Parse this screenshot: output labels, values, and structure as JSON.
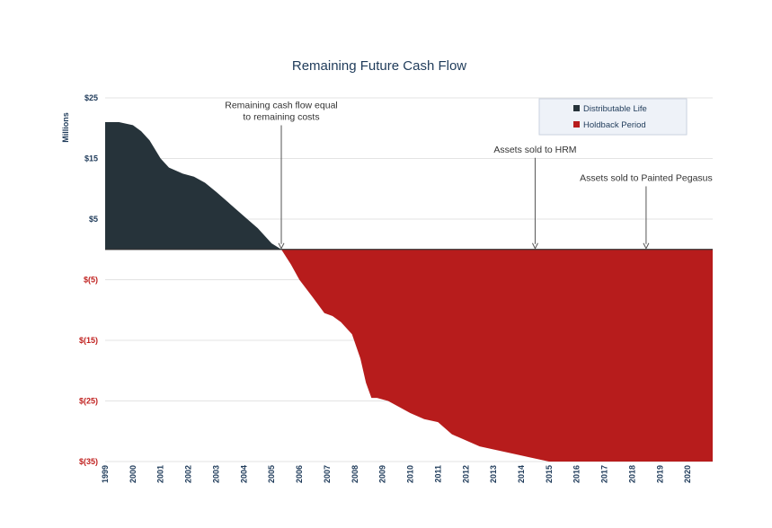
{
  "chart_data": {
    "type": "area",
    "title": "Remaining Future Cash Flow",
    "ylabel": "Millions",
    "xlabel": "",
    "ylim": [
      -35,
      25
    ],
    "xlim": [
      1999,
      2020.9
    ],
    "y_ticks": [
      {
        "value": 25,
        "label": "$25",
        "color": "#1f3b5a"
      },
      {
        "value": 15,
        "label": "$15",
        "color": "#1f3b5a"
      },
      {
        "value": 5,
        "label": "$5",
        "color": "#1f3b5a"
      },
      {
        "value": -5,
        "label": "$(5)",
        "color": "#c0211f"
      },
      {
        "value": -15,
        "label": "$(15)",
        "color": "#c0211f"
      },
      {
        "value": -25,
        "label": "$(25)",
        "color": "#c0211f"
      },
      {
        "value": -35,
        "label": "$(35)",
        "color": "#c0211f"
      }
    ],
    "x_ticks": [
      "1999",
      "2000",
      "2001",
      "2002",
      "2003",
      "2004",
      "2005",
      "2006",
      "2007",
      "2008",
      "2009",
      "2010",
      "2011",
      "2012",
      "2013",
      "2014",
      "2015",
      "2016",
      "2017",
      "2018",
      "2019",
      "2020"
    ],
    "grid": true,
    "legend_position": "top-right",
    "series": [
      {
        "name": "Distributable Life",
        "color": "#26333a",
        "x": [
          1999,
          1999.5,
          2000,
          2000.3,
          2000.6,
          2001,
          2001.3,
          2001.8,
          2002.2,
          2002.6,
          2003,
          2003.5,
          2004,
          2004.5,
          2005,
          2005.35
        ],
        "y": [
          21,
          21,
          20.5,
          19.5,
          18,
          15,
          13.5,
          12.5,
          12,
          11,
          9.5,
          7.5,
          5.5,
          3.5,
          1,
          0
        ]
      },
      {
        "name": "Holdback Period",
        "color": "#b71c1c",
        "x": [
          2005.35,
          2005.7,
          2006,
          2006.5,
          2006.9,
          2007.2,
          2007.5,
          2007.9,
          2008.2,
          2008.4,
          2008.6,
          2008.8,
          2009.2,
          2009.6,
          2010,
          2010.5,
          2011,
          2011.5,
          2012,
          2012.5,
          2013,
          2013.5,
          2014,
          2014.5,
          2015,
          2016,
          2017,
          2018,
          2019,
          2020,
          2020.9
        ],
        "y": [
          0,
          -2.5,
          -5,
          -8,
          -10.5,
          -11,
          -12,
          -14,
          -18,
          -22,
          -24.5,
          -24.5,
          -25,
          -26,
          -27,
          -28,
          -28.5,
          -30.5,
          -31.5,
          -32.5,
          -33,
          -33.5,
          -34,
          -34.5,
          -35,
          -35,
          -35,
          -35,
          -35,
          -35,
          -35
        ]
      }
    ],
    "annotations": [
      {
        "lines": [
          "Remaining cash flow equal",
          "to remaining costs"
        ],
        "x": 2005.35,
        "text_y": 23.3
      },
      {
        "lines": [
          "Assets sold to HRM"
        ],
        "x": 2014.5,
        "text_y": 16
      },
      {
        "lines": [
          "Assets sold to Painted Pegasus"
        ],
        "x": 2018.5,
        "text_y": 11.3
      }
    ]
  }
}
